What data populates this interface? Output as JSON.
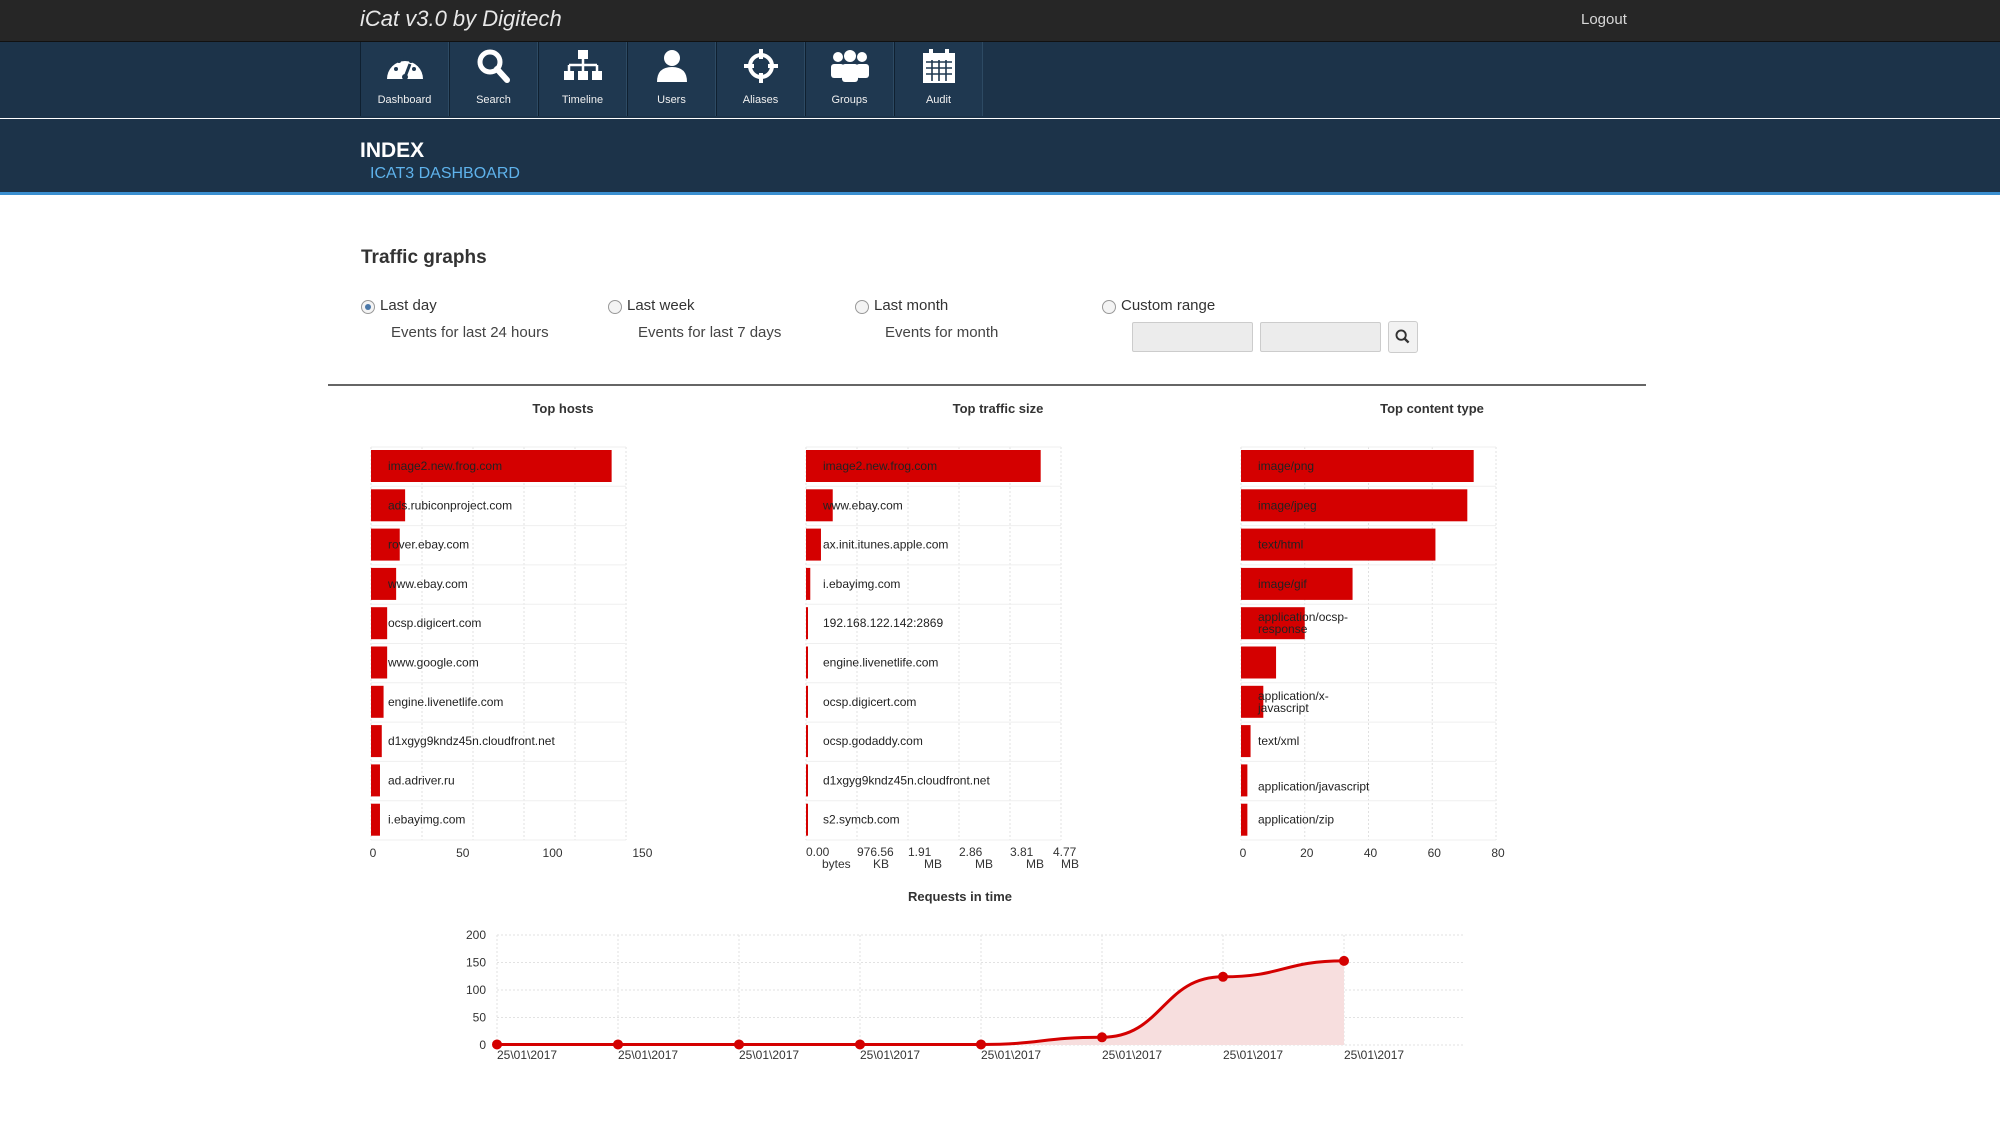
{
  "app": {
    "title": "iCat v3.0 by Digitech",
    "logout_label": "Logout"
  },
  "nav": [
    {
      "label": "Dashboard",
      "icon": "dashboard-icon"
    },
    {
      "label": "Search",
      "icon": "search-icon"
    },
    {
      "label": "Timeline",
      "icon": "sitemap-icon"
    },
    {
      "label": "Users",
      "icon": "user-icon"
    },
    {
      "label": "Aliases",
      "icon": "crosshairs-icon"
    },
    {
      "label": "Groups",
      "icon": "group-icon"
    },
    {
      "label": "Audit",
      "icon": "calendar-icon"
    }
  ],
  "page": {
    "title": "INDEX",
    "subtitle": "ICAT3 DASHBOARD"
  },
  "traffic": {
    "title": "Traffic graphs",
    "ranges": [
      {
        "label": "Last day",
        "desc": "Events for last 24 hours",
        "selected": true
      },
      {
        "label": "Last week",
        "desc": "Events for last 7 days",
        "selected": false
      },
      {
        "label": "Last month",
        "desc": "Events for month",
        "selected": false
      },
      {
        "label": "Custom range",
        "desc": "",
        "selected": false
      }
    ],
    "custom_from": "",
    "custom_to": ""
  },
  "colors": {
    "bar": "#d40000",
    "nav_bg": "#1c3349",
    "accent": "#5fb3ec",
    "area": "#f7dede"
  },
  "chart_data": [
    {
      "type": "bar",
      "orientation": "horizontal",
      "title": "Top hosts",
      "categories": [
        "image2.new.frog.com",
        "ads.rubiconproject.com",
        "rover.ebay.com",
        "www.ebay.com",
        "ocsp.digicert.com",
        "www.google.com",
        "engine.livenetlife.com",
        "d1xgyg9kndz45n.cloudfront.net",
        "ad.adriver.ru",
        "i.ebayimg.com"
      ],
      "values": [
        134,
        19,
        16,
        14,
        9,
        9,
        7,
        6,
        5,
        5
      ],
      "xlim": [
        0,
        142
      ],
      "xticks": [
        "0",
        "50",
        "100",
        "150"
      ],
      "grid": true
    },
    {
      "type": "bar",
      "orientation": "horizontal",
      "title": "Top traffic size",
      "categories": [
        "image2.new.frog.com",
        "www.ebay.com",
        "ax.init.itunes.apple.com",
        "i.ebayimg.com",
        "192.168.122.142:2869",
        "engine.livenetlife.com",
        "ocsp.digicert.com",
        "ocsp.godaddy.com",
        "d1xgyg9kndz45n.cloudfront.net",
        "s2.symcb.com"
      ],
      "values_mb": [
        4.39,
        0.5,
        0.28,
        0.08,
        0.02,
        0.01,
        0.01,
        0.01,
        0.005,
        0.005
      ],
      "xlim_mb": [
        0,
        4.77
      ],
      "xticks": [
        "0.00 bytes",
        "976.56 KB",
        "1.91 MB",
        "2.86 MB",
        "3.81 MB",
        "4.77 MB"
      ],
      "grid": true
    },
    {
      "type": "bar",
      "orientation": "horizontal",
      "title": "Top content type",
      "categories": [
        "image/png",
        "image/jpeg",
        "text/html",
        "image/gif",
        "application/ocsp-response",
        "",
        "application/x-javascript",
        "text/xml",
        "application/javascript",
        "application/zip"
      ],
      "values": [
        73,
        71,
        61,
        35,
        20,
        11,
        7,
        3,
        2,
        2
      ],
      "xlim": [
        0,
        80
      ],
      "xticks": [
        "0",
        "20",
        "40",
        "60",
        "80"
      ],
      "grid": true
    },
    {
      "type": "area",
      "title": "Requests in time",
      "x": [
        "25\\01\\2017",
        "25\\01\\2017",
        "25\\01\\2017",
        "25\\01\\2017",
        "25\\01\\2017",
        "25\\01\\2017",
        "25\\01\\2017",
        "25\\01\\2017"
      ],
      "values": [
        1,
        1,
        1,
        1,
        1,
        14,
        124,
        153
      ],
      "ylim": [
        0,
        200
      ],
      "yticks": [
        "0",
        "50",
        "100",
        "150",
        "200"
      ],
      "grid": true
    }
  ]
}
